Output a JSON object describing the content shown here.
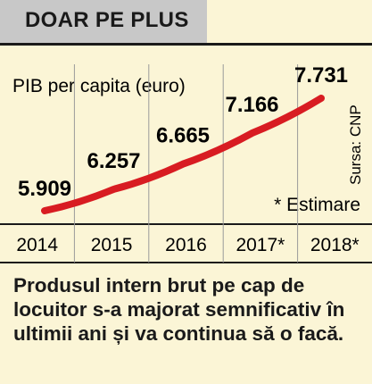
{
  "header": {
    "title": "DOAR PE PLUS"
  },
  "chart_data": {
    "type": "line",
    "title": "",
    "ylabel": "PIB per capita (euro)",
    "xlabel": "",
    "categories": [
      "2014",
      "2015",
      "2016",
      "2017*",
      "2018*"
    ],
    "values": [
      5909,
      6257,
      6665,
      7166,
      7731
    ],
    "value_labels": [
      "5.909",
      "6.257",
      "6.665",
      "7.166",
      "7.731"
    ],
    "series_color": "#d81c22",
    "source": "Sursa: CNP",
    "note": "* Estimare"
  },
  "caption": "Produsul intern brut pe cap de locuitor s-a majorat semnificativ în ultimii ani și va continua să o facă."
}
